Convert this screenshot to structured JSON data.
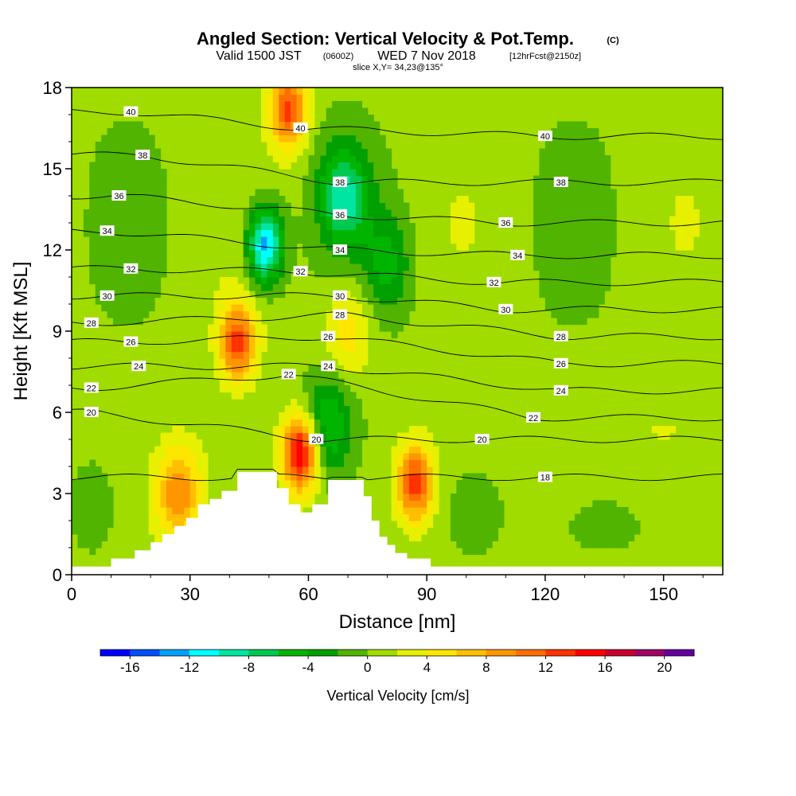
{
  "header": {
    "title_main": "Angled Section: Vertical Velocity & Pot.Temp.",
    "title_mark": "(C)",
    "valid_prefix": "Valid 1500 JST",
    "valid_zulu": "(0600Z)",
    "valid_date": "WED 7 Nov 2018",
    "forecast": "[12hrFcst@2150z]",
    "slice": "slice X,Y= 34,23@135°"
  },
  "chart_data": {
    "type": "heatmap",
    "xlabel": "Distance [nm]",
    "ylabel": "Height [Kft MSL]",
    "xlim": [
      0,
      165
    ],
    "ylim": [
      0,
      18
    ],
    "x_ticks": [
      0,
      30,
      60,
      90,
      120,
      150
    ],
    "y_ticks": [
      0,
      3,
      6,
      9,
      12,
      15,
      18
    ],
    "colorbar": {
      "label": "Vertical Velocity [cm/s]",
      "tick_values": [
        -16,
        -12,
        -8,
        -4,
        0,
        4,
        8,
        12,
        16,
        20
      ],
      "bounds": [
        -18,
        -16,
        -14,
        -12,
        -10,
        -8,
        -6,
        -4,
        -2,
        0,
        2,
        4,
        6,
        8,
        10,
        12,
        14,
        16,
        18,
        20,
        22
      ],
      "colors": [
        "#0000ff",
        "#0050ff",
        "#00a0ff",
        "#00ffff",
        "#00e6a0",
        "#00c850",
        "#00b400",
        "#00a000",
        "#50b400",
        "#a0dc00",
        "#e6f000",
        "#ffe600",
        "#ffbe00",
        "#ff9600",
        "#ff6e00",
        "#ff3200",
        "#ff0000",
        "#c8002d",
        "#a00064",
        "#64009b"
      ]
    },
    "updraft_cells": [
      {
        "x": 42,
        "y": 8.6,
        "peak": 12
      },
      {
        "x": 58,
        "y": 4.5,
        "peak": 16
      },
      {
        "x": 87,
        "y": 3.4,
        "peak": 13
      },
      {
        "x": 55,
        "y": 17.2,
        "peak": 12
      },
      {
        "x": 27,
        "y": 3.0,
        "peak": 9
      },
      {
        "x": 70,
        "y": 9.0,
        "peak": 5
      }
    ],
    "downdraft_cells": [
      {
        "x": 49,
        "y": 12.2,
        "peak": -14
      },
      {
        "x": 69,
        "y": 14.0,
        "peak": -9
      },
      {
        "x": 65,
        "y": 5.5,
        "peak": -7
      },
      {
        "x": 80,
        "y": 11.5,
        "peak": -5
      }
    ],
    "terrain": [
      {
        "x": 0,
        "h": 0.3
      },
      {
        "x": 10,
        "h": 0.6
      },
      {
        "x": 16,
        "h": 0.9
      },
      {
        "x": 20,
        "h": 1.2
      },
      {
        "x": 23,
        "h": 1.5
      },
      {
        "x": 26,
        "h": 1.8
      },
      {
        "x": 29,
        "h": 2.1
      },
      {
        "x": 32,
        "h": 2.6
      },
      {
        "x": 35,
        "h": 2.8
      },
      {
        "x": 38,
        "h": 3.1
      },
      {
        "x": 42,
        "h": 3.8
      },
      {
        "x": 49,
        "h": 3.8
      },
      {
        "x": 52,
        "h": 3.2
      },
      {
        "x": 55,
        "h": 2.6
      },
      {
        "x": 58,
        "h": 2.3
      },
      {
        "x": 61,
        "h": 2.6
      },
      {
        "x": 65,
        "h": 3.5
      },
      {
        "x": 71,
        "h": 3.5
      },
      {
        "x": 74,
        "h": 2.9
      },
      {
        "x": 76,
        "h": 2.0
      },
      {
        "x": 78,
        "h": 1.4
      },
      {
        "x": 80,
        "h": 1.1
      },
      {
        "x": 82,
        "h": 0.8
      },
      {
        "x": 85,
        "h": 0.6
      },
      {
        "x": 91,
        "h": 0.3
      },
      {
        "x": 165,
        "h": 0.3
      }
    ],
    "isentropes": [
      {
        "theta": 18,
        "labels": [
          {
            "x": 120,
            "y": 3.6
          }
        ]
      },
      {
        "theta": 20,
        "labels": [
          {
            "x": 5,
            "y": 6.0
          },
          {
            "x": 62,
            "y": 5.0
          },
          {
            "x": 104,
            "y": 5.0
          }
        ]
      },
      {
        "theta": 22,
        "labels": [
          {
            "x": 5,
            "y": 6.9
          },
          {
            "x": 55,
            "y": 7.4
          },
          {
            "x": 117,
            "y": 5.8
          }
        ]
      },
      {
        "theta": 24,
        "labels": [
          {
            "x": 17,
            "y": 7.7
          },
          {
            "x": 65,
            "y": 7.7
          },
          {
            "x": 124,
            "y": 6.8
          }
        ]
      },
      {
        "theta": 26,
        "labels": [
          {
            "x": 15,
            "y": 8.6
          },
          {
            "x": 65,
            "y": 8.8
          },
          {
            "x": 124,
            "y": 7.8
          }
        ]
      },
      {
        "theta": 28,
        "labels": [
          {
            "x": 5,
            "y": 9.3
          },
          {
            "x": 68,
            "y": 9.6
          },
          {
            "x": 124,
            "y": 8.8
          }
        ]
      },
      {
        "theta": 30,
        "labels": [
          {
            "x": 9,
            "y": 10.3
          },
          {
            "x": 68,
            "y": 10.3
          },
          {
            "x": 110,
            "y": 9.8
          }
        ]
      },
      {
        "theta": 32,
        "labels": [
          {
            "x": 15,
            "y": 11.3
          },
          {
            "x": 58,
            "y": 11.2
          },
          {
            "x": 107,
            "y": 10.8
          }
        ]
      },
      {
        "theta": 34,
        "labels": [
          {
            "x": 9,
            "y": 12.7
          },
          {
            "x": 68,
            "y": 12.0
          },
          {
            "x": 113,
            "y": 11.8
          }
        ]
      },
      {
        "theta": 36,
        "labels": [
          {
            "x": 12,
            "y": 14.0
          },
          {
            "x": 68,
            "y": 13.3
          },
          {
            "x": 110,
            "y": 13.0
          }
        ]
      },
      {
        "theta": 38,
        "labels": [
          {
            "x": 18,
            "y": 15.5
          },
          {
            "x": 68,
            "y": 14.5
          },
          {
            "x": 124,
            "y": 14.5
          }
        ]
      },
      {
        "theta": 40,
        "labels": [
          {
            "x": 15,
            "y": 17.1
          },
          {
            "x": 58,
            "y": 16.5
          },
          {
            "x": 120,
            "y": 16.2
          }
        ]
      }
    ]
  }
}
